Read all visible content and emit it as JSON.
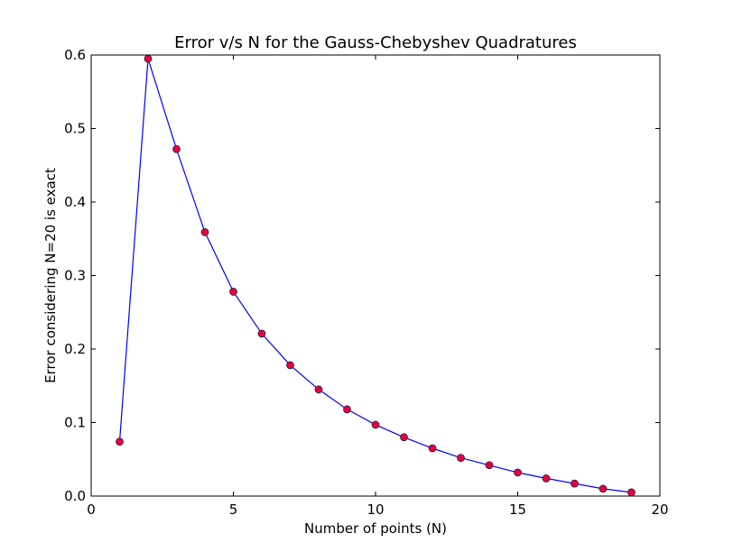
{
  "chart_data": {
    "type": "line",
    "title": "Error v/s N for the Gauss-Chebyshev Quadratures",
    "xlabel": "Number of points (N)",
    "ylabel": "Error considering N=20 is exact",
    "xlim": [
      0,
      20
    ],
    "ylim": [
      0,
      0.6
    ],
    "xticks": [
      0,
      5,
      10,
      15,
      20
    ],
    "yticks": [
      0.0,
      0.1,
      0.2,
      0.3,
      0.4,
      0.5,
      0.6
    ],
    "xtick_labels": [
      "0",
      "5",
      "10",
      "15",
      "20"
    ],
    "ytick_labels": [
      "0.0",
      "0.1",
      "0.2",
      "0.3",
      "0.4",
      "0.5",
      "0.6"
    ],
    "grid": false,
    "line_color": "#0000ff",
    "marker_color": "#e8003c",
    "series": [
      {
        "x": [
          1,
          2,
          3,
          4,
          5,
          6,
          7,
          8,
          9,
          10,
          11,
          12,
          13,
          14,
          15,
          16,
          17,
          18,
          19
        ],
        "y": [
          0.074,
          0.595,
          0.472,
          0.359,
          0.278,
          0.221,
          0.178,
          0.145,
          0.118,
          0.097,
          0.08,
          0.065,
          0.052,
          0.042,
          0.032,
          0.024,
          0.017,
          0.01,
          0.005
        ]
      }
    ]
  }
}
